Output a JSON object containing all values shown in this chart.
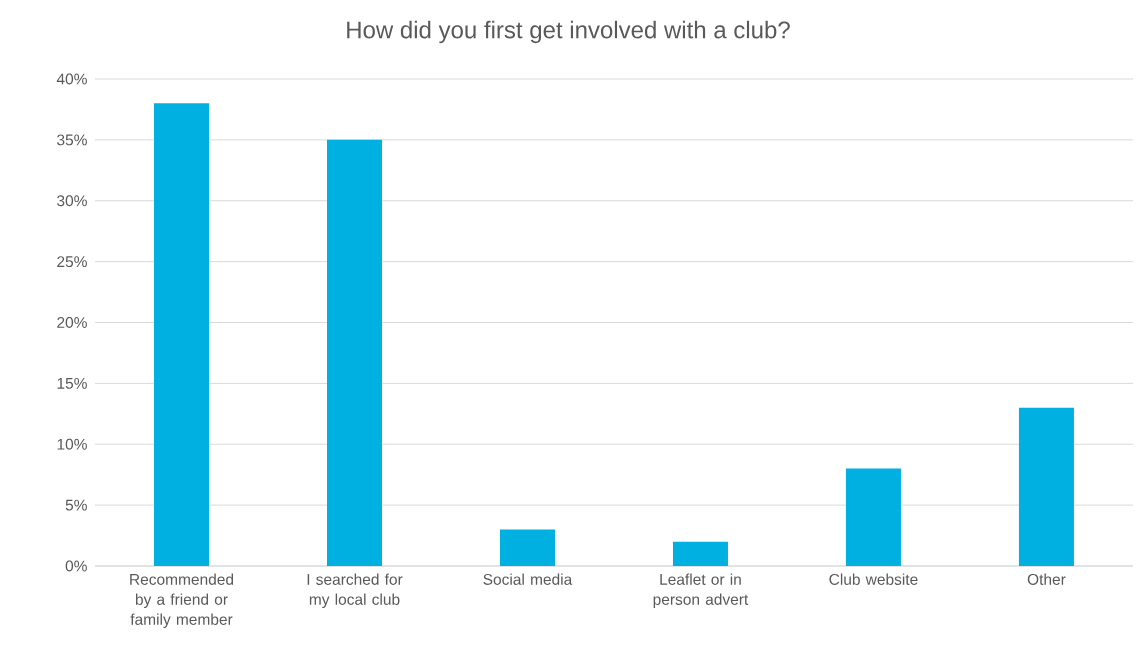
{
  "chart_data": {
    "type": "bar",
    "title": "How did you first get involved with a club?",
    "categories": [
      "Recommended by a friend or family member",
      "I searched for my local club",
      "Social media",
      "Leaflet or in person advert",
      "Club website",
      "Other"
    ],
    "values": [
      38,
      35,
      3,
      2,
      8,
      13
    ],
    "color": "#00b0e0",
    "ylim": [
      0,
      40
    ],
    "yticks": [
      {
        "value": 0,
        "label": "0%"
      },
      {
        "value": 5,
        "label": "5%"
      },
      {
        "value": 10,
        "label": "10%"
      },
      {
        "value": 15,
        "label": "15%"
      },
      {
        "value": 20,
        "label": "20%"
      },
      {
        "value": 25,
        "label": "25%"
      },
      {
        "value": 30,
        "label": "30%"
      },
      {
        "value": 35,
        "label": "35%"
      },
      {
        "value": 40,
        "label": "40%"
      }
    ],
    "grid": "y"
  }
}
